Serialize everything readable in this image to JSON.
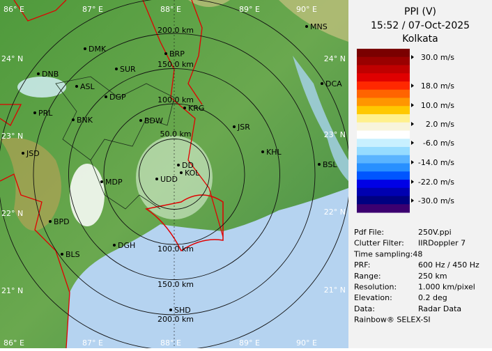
{
  "header": {
    "title": "PPI (V)",
    "time": "15:52 / 07-Oct-2025",
    "station": "Kolkata"
  },
  "map": {
    "lon_labels": [
      "86° E",
      "87° E",
      "88° E",
      "89° E",
      "90° E"
    ],
    "lat_labels_left": [
      "24° N",
      "23° N",
      "22° N",
      "21° N"
    ],
    "lat_labels_right": [
      "24° N",
      "23° N",
      "22° N",
      "21° N"
    ],
    "range_labels": [
      "200.0 km",
      "150.0 km",
      "100.0 km",
      "50.0 km",
      "100.0 km",
      "150.0 km",
      "200.0 km"
    ],
    "cities": [
      "MNS",
      "DMK",
      "BRP",
      "SUR",
      "DNB",
      "ASL",
      "DGP",
      "DCA",
      "KRG",
      "PRL",
      "BNK",
      "BDW",
      "JSR",
      "KHL",
      "JSD",
      "DD",
      "KOL",
      "BSL",
      "MDP",
      "UDD",
      "BPD",
      "DGH",
      "BLS",
      "SHD"
    ]
  },
  "legend": {
    "colors": [
      "#7a0000",
      "#9a0000",
      "#c00000",
      "#e00000",
      "#ff2800",
      "#ff6400",
      "#ff9600",
      "#ffc800",
      "#fff08c",
      "#f8f4dc",
      "#ffffff",
      "#c8f0ff",
      "#96dcff",
      "#5ab4ff",
      "#2890ff",
      "#0055ff",
      "#0000e6",
      "#0000b0",
      "#000080",
      "#3c0070"
    ],
    "labels": [
      "30.0 m/s",
      "18.0 m/s",
      "10.0 m/s",
      "2.0 m/s",
      "-6.0 m/s",
      "-14.0 m/s",
      "-22.0 m/s",
      "-30.0 m/s"
    ]
  },
  "info": [
    [
      "Pdf File:",
      "250V.ppi"
    ],
    [
      "Clutter Filter:",
      "IIRDoppler 7"
    ],
    [
      "Time sampling:48"
    ],
    [
      "PRF:",
      "600 Hz / 450 Hz"
    ],
    [
      "Range:",
      "250 km"
    ],
    [
      "Resolution:",
      "1.000 km/pixel"
    ],
    [
      "Elevation:",
      "0.2 deg"
    ],
    [
      "Data:",
      "Radar Data"
    ],
    [
      "Rainbow® SELEX-SI"
    ]
  ]
}
